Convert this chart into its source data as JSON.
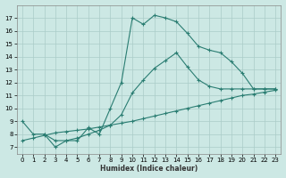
{
  "xlabel": "Humidex (Indice chaleur)",
  "line1_x": [
    0,
    1,
    2,
    3,
    4,
    5,
    6,
    7,
    8,
    9,
    10,
    11,
    12,
    13,
    14,
    15,
    16,
    17,
    18,
    19,
    20,
    21,
    22,
    23
  ],
  "line1_y": [
    9,
    8,
    8,
    7,
    7.5,
    7.5,
    8.5,
    8.0,
    10.0,
    12.0,
    17.0,
    16.5,
    17.2,
    17.0,
    16.7,
    15.8,
    14.8,
    14.5,
    14.3,
    13.6,
    12.7,
    11.5,
    11.5,
    11.5
  ],
  "line2_x": [
    2,
    3,
    4,
    5,
    6,
    7,
    8,
    9,
    10,
    11,
    12,
    13,
    14,
    15,
    16,
    17,
    18,
    19,
    20,
    21,
    22,
    23
  ],
  "line2_y": [
    8.0,
    7.5,
    7.5,
    7.7,
    8.0,
    8.3,
    8.7,
    9.5,
    11.2,
    12.2,
    13.1,
    13.7,
    14.3,
    13.2,
    12.2,
    11.7,
    11.5,
    11.5,
    11.5,
    11.5,
    11.5,
    11.5
  ],
  "line3_x": [
    0,
    1,
    2,
    3,
    4,
    5,
    6,
    7,
    8,
    9,
    10,
    11,
    12,
    13,
    14,
    15,
    16,
    17,
    18,
    19,
    20,
    21,
    22,
    23
  ],
  "line3_y": [
    7.5,
    7.7,
    7.9,
    8.1,
    8.2,
    8.3,
    8.4,
    8.55,
    8.7,
    8.85,
    9.0,
    9.2,
    9.4,
    9.6,
    9.8,
    10.0,
    10.2,
    10.4,
    10.6,
    10.8,
    11.0,
    11.1,
    11.25,
    11.4
  ],
  "color": "#2a7d72",
  "bg_color": "#cce8e4",
  "grid_color": "#aaccc8",
  "ylim": [
    6.5,
    18
  ],
  "xlim": [
    -0.5,
    23.5
  ],
  "yticks": [
    7,
    8,
    9,
    10,
    11,
    12,
    13,
    14,
    15,
    16,
    17
  ],
  "xticks": [
    0,
    1,
    2,
    3,
    4,
    5,
    6,
    7,
    8,
    9,
    10,
    11,
    12,
    13,
    14,
    15,
    16,
    17,
    18,
    19,
    20,
    21,
    22,
    23
  ]
}
